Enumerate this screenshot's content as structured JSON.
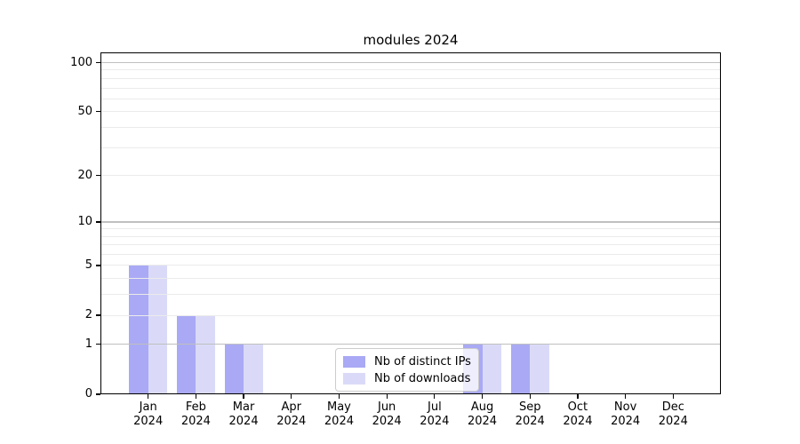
{
  "chart_data": {
    "type": "bar",
    "title": "modules 2024",
    "categories": [
      "Jan 2024",
      "Feb 2024",
      "Mar 2024",
      "Apr 2024",
      "May 2024",
      "Jun 2024",
      "Jul 2024",
      "Aug 2024",
      "Sep 2024",
      "Oct 2024",
      "Nov 2024",
      "Dec 2024"
    ],
    "x_tick_months": [
      "Jan",
      "Feb",
      "Mar",
      "Apr",
      "May",
      "Jun",
      "Jul",
      "Aug",
      "Sep",
      "Oct",
      "Nov",
      "Dec"
    ],
    "x_tick_year": "2024",
    "series": [
      {
        "name": "Nb of distinct IPs",
        "color": "#a9a9f5",
        "values": [
          5,
          2,
          1,
          0,
          0,
          0,
          0,
          1,
          1,
          0,
          0,
          0
        ]
      },
      {
        "name": "Nb of downloads",
        "color": "#dadaf8",
        "values": [
          5,
          2,
          1,
          0,
          0,
          0,
          0,
          1,
          1,
          0,
          0,
          0
        ]
      }
    ],
    "y_axis": {
      "scale": "log1p",
      "min": 0,
      "max": 100,
      "tick_labels": [
        0,
        1,
        2,
        5,
        10,
        20,
        50,
        100
      ],
      "major_gridlines": [
        1,
        10,
        100
      ],
      "minor_gridlines": [
        2,
        3,
        4,
        5,
        6,
        7,
        8,
        9,
        20,
        30,
        40,
        50,
        60,
        70,
        80,
        90
      ]
    },
    "legend_position": "lower center",
    "grid": true
  },
  "colors": {
    "background": "#ffffff",
    "grid_major": "#c0c0c0",
    "grid_minor": "#ebebeb",
    "spine": "#000000",
    "legend_border": "#cccccc"
  }
}
